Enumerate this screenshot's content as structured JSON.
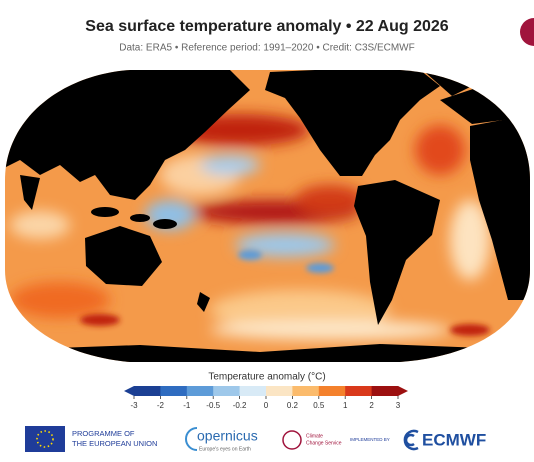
{
  "header": {
    "title": "Sea surface temperature anomaly • 22 Aug 2026",
    "subtitle": "Data: ERA5 • Reference period: 1991–2020 • Credit: C3S/ECMWF"
  },
  "legend": {
    "title": "Temperature anomaly (°C)",
    "ticks": [
      -3,
      -2,
      -1,
      -0.5,
      -0.2,
      0,
      0.2,
      0.5,
      1,
      2,
      3
    ],
    "colors": [
      "#1b3f93",
      "#2f6cc0",
      "#5d9bd8",
      "#9ec8ea",
      "#d8eaf6",
      "#fbe5c4",
      "#fbbb6c",
      "#f4812c",
      "#d9391b",
      "#9c1010"
    ]
  },
  "footer": {
    "eu_line1": "PROGRAMME OF",
    "eu_line2": "THE EUROPEAN UNION",
    "copernicus": "opernicus",
    "copernicus_tagline": "Europe's eyes on Earth",
    "c3s_line1": "Climate",
    "c3s_line2": "Change Service",
    "implemented_by": "IMPLEMENTED BY",
    "ecmwf": "ECMWF"
  }
}
